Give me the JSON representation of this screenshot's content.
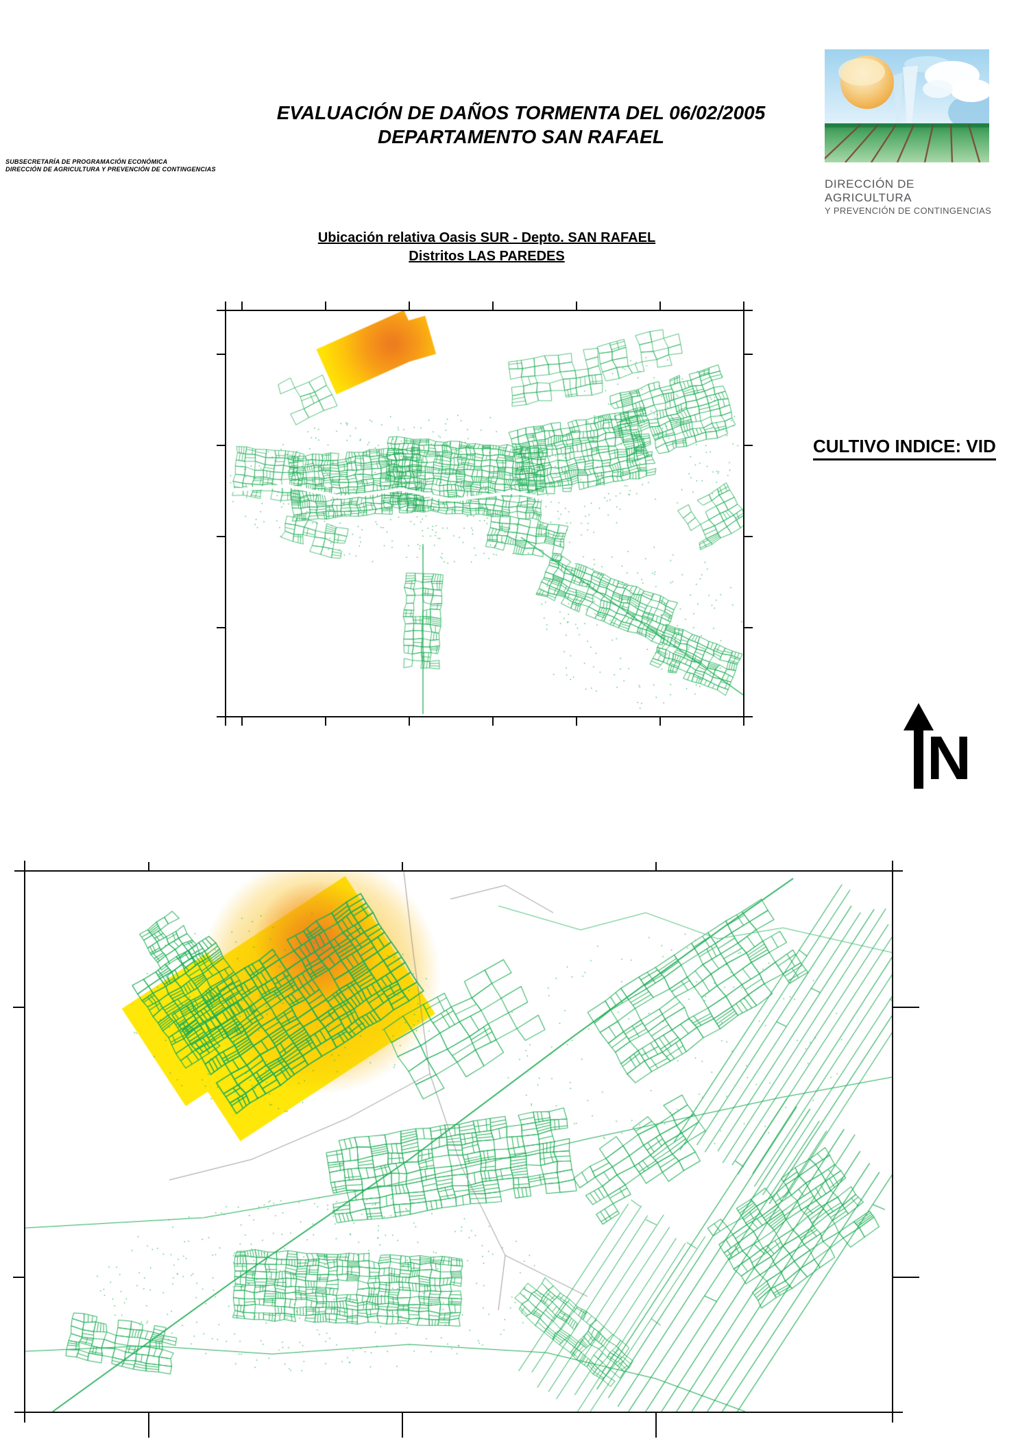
{
  "header": {
    "org_line1": "SUBSECRETARÍA DE PROGRAMACIÓN ECONÓMICA",
    "org_line2": "DIRECCIÓN DE AGRICULTURA Y PREVENCIÓN DE CONTINGENCIAS",
    "title_line1": "EVALUACIÓN DE DAÑOS TORMENTA DEL 06/02/2005",
    "title_line2": "DEPARTAMENTO SAN RAFAEL",
    "logo_caption_line1": "DIRECCIÓN DE AGRICULTURA",
    "logo_caption_line2": "Y PREVENCIÓN DE CONTINGENCIAS"
  },
  "overview_map": {
    "subtitle_line1": "Ubicación relativa Oasis SUR - Depto. SAN RAFAEL",
    "subtitle_line2": "Distritos LAS PAREDES"
  },
  "annotations": {
    "crop_index_label": "CULTIVO INDICE: VID",
    "north_label": "N"
  },
  "colors": {
    "parcel_green": "#1fae56",
    "parcel_green_light": "#4cc47d",
    "damage_yellow": "#ffe70a",
    "damage_gold": "#f9ba08",
    "damage_orange": "#ee7e1e",
    "district_gray": "#8f8f8f",
    "frame_black": "#0a0a0a",
    "caption_gray": "#55565a"
  }
}
